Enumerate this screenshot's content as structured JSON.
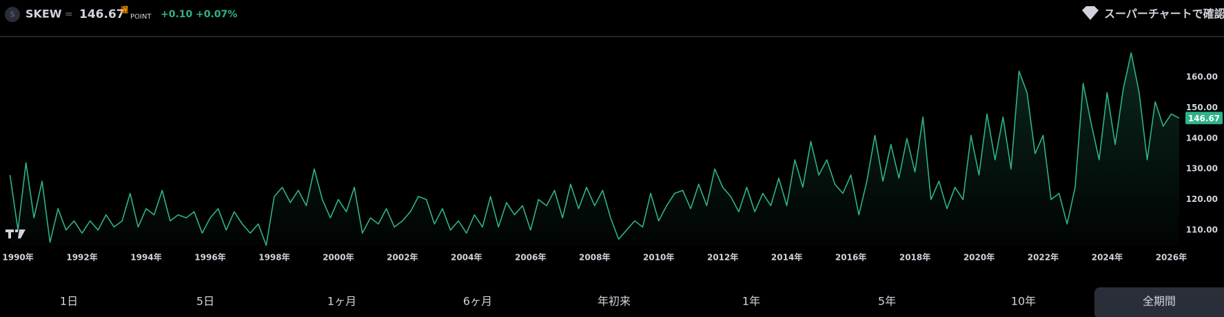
{
  "header": {
    "icon_letter": "S",
    "separator": "=",
    "delay": "遅",
    "unit": "POINT",
    "change": "+0.10",
    "change_pct": "+0.07%",
    "action": "スーパーチャートで確認"
  },
  "ranges": [
    "1日",
    "5日",
    "1ヶ月",
    "6ヶ月",
    "年初来",
    "1年",
    "5年",
    "10年",
    "全期間"
  ],
  "chart_data": {
    "type": "line",
    "x": [
      1989.75,
      1990,
      1990.25,
      1990.5,
      1990.75,
      1991,
      1991.25,
      1991.5,
      1991.75,
      1992,
      1992.25,
      1992.5,
      1992.75,
      1993,
      1993.25,
      1993.5,
      1993.75,
      1994,
      1994.25,
      1994.5,
      1994.75,
      1995,
      1995.25,
      1995.5,
      1995.75,
      1996,
      1996.25,
      1996.5,
      1996.75,
      1997,
      1997.25,
      1997.5,
      1997.75,
      1998,
      1998.25,
      1998.5,
      1998.75,
      1999,
      1999.25,
      1999.5,
      1999.75,
      2000,
      2000.25,
      2000.5,
      2000.75,
      2001,
      2001.25,
      2001.5,
      2001.75,
      2002,
      2002.25,
      2002.5,
      2002.75,
      2003,
      2003.25,
      2003.5,
      2003.75,
      2004,
      2004.25,
      2004.5,
      2004.75,
      2005,
      2005.25,
      2005.5,
      2005.75,
      2006,
      2006.25,
      2006.5,
      2006.75,
      2007,
      2007.25,
      2007.5,
      2007.75,
      2008,
      2008.25,
      2008.5,
      2008.75,
      2009,
      2009.25,
      2009.5,
      2009.75,
      2010,
      2010.25,
      2010.5,
      2010.75,
      2011,
      2011.25,
      2011.5,
      2011.75,
      2012,
      2012.25,
      2012.5,
      2012.75,
      2013,
      2013.25,
      2013.5,
      2013.75,
      2014,
      2014.25,
      2014.5,
      2014.75,
      2015,
      2015.25,
      2015.5,
      2015.75,
      2016,
      2016.25,
      2016.5,
      2016.75,
      2017,
      2017.25,
      2017.5,
      2017.75,
      2018,
      2018.25,
      2018.5,
      2018.75,
      2019,
      2019.25,
      2019.5,
      2019.75,
      2020,
      2020.25,
      2020.5,
      2020.75,
      2021,
      2021.25,
      2021.5,
      2021.75,
      2022,
      2022.25,
      2022.5,
      2022.75,
      2023,
      2023.25,
      2023.5,
      2023.75,
      2024,
      2024.25,
      2024.5,
      2024.75,
      2025,
      2025.25,
      2025.5,
      2025.75,
      2026,
      2026.25
    ],
    "series": [
      {
        "name": "SKEW",
        "color": "#2fb38a",
        "values": [
          128,
          110,
          132,
          114,
          126,
          106,
          117,
          110,
          113,
          109,
          113,
          110,
          115,
          111,
          113,
          122,
          111,
          117,
          115,
          123,
          113,
          115,
          114,
          116,
          109,
          114,
          117,
          110,
          116,
          112,
          109,
          112,
          105,
          121,
          124,
          119,
          123,
          118,
          130,
          120,
          114,
          120,
          116,
          124,
          109,
          114,
          112,
          117,
          111,
          113,
          116,
          121,
          120,
          112,
          117,
          110,
          113,
          109,
          115,
          111,
          121,
          111,
          119,
          115,
          118,
          110,
          120,
          118,
          123,
          114,
          125,
          117,
          124,
          118,
          123,
          114,
          107,
          110,
          113,
          111,
          122,
          113,
          118,
          122,
          123,
          117,
          125,
          118,
          130,
          124,
          121,
          116,
          124,
          116,
          122,
          118,
          127,
          118,
          133,
          124,
          139,
          128,
          133,
          125,
          122,
          128,
          115,
          126,
          141,
          126,
          138,
          127,
          140,
          129,
          147,
          120,
          126,
          117,
          124,
          120,
          141,
          128,
          148,
          133,
          147,
          130,
          162,
          155,
          135,
          141,
          120,
          122,
          112,
          124,
          158,
          145,
          133,
          155,
          138,
          156,
          168,
          155,
          133,
          152,
          144,
          148,
          146.67
        ]
      }
    ],
    "xlim": [
      1989.6,
      2026.4
    ],
    "ylim": [
      105,
      172
    ],
    "xticks": [
      {
        "value": 1990,
        "label": "1990年"
      },
      {
        "value": 1992,
        "label": "1992年"
      },
      {
        "value": 1994,
        "label": "1994年"
      },
      {
        "value": 1996,
        "label": "1996年"
      },
      {
        "value": 1998,
        "label": "1998年"
      },
      {
        "value": 2000,
        "label": "2000年"
      },
      {
        "value": 2002,
        "label": "2002年"
      },
      {
        "value": 2004,
        "label": "2004年"
      },
      {
        "value": 2006,
        "label": "2006年"
      },
      {
        "value": 2008,
        "label": "2008年"
      },
      {
        "value": 2010,
        "label": "2010年"
      },
      {
        "value": 2012,
        "label": "2012年"
      },
      {
        "value": 2014,
        "label": "2014年"
      },
      {
        "value": 2016,
        "label": "2016年"
      },
      {
        "value": 2018,
        "label": "2018年"
      },
      {
        "value": 2020,
        "label": "2020年"
      },
      {
        "value": 2022,
        "label": "2022年"
      },
      {
        "value": 2024,
        "label": "2024年"
      },
      {
        "value": 2026,
        "label": "2026年"
      }
    ],
    "yticks": [
      {
        "value": 110,
        "label": "110.00"
      },
      {
        "value": 120,
        "label": "120.00"
      },
      {
        "value": 130,
        "label": "130.00"
      },
      {
        "value": 140,
        "label": "140.00"
      },
      {
        "value": 150,
        "label": "150.00"
      },
      {
        "value": 160,
        "label": "160.00"
      }
    ]
  }
}
